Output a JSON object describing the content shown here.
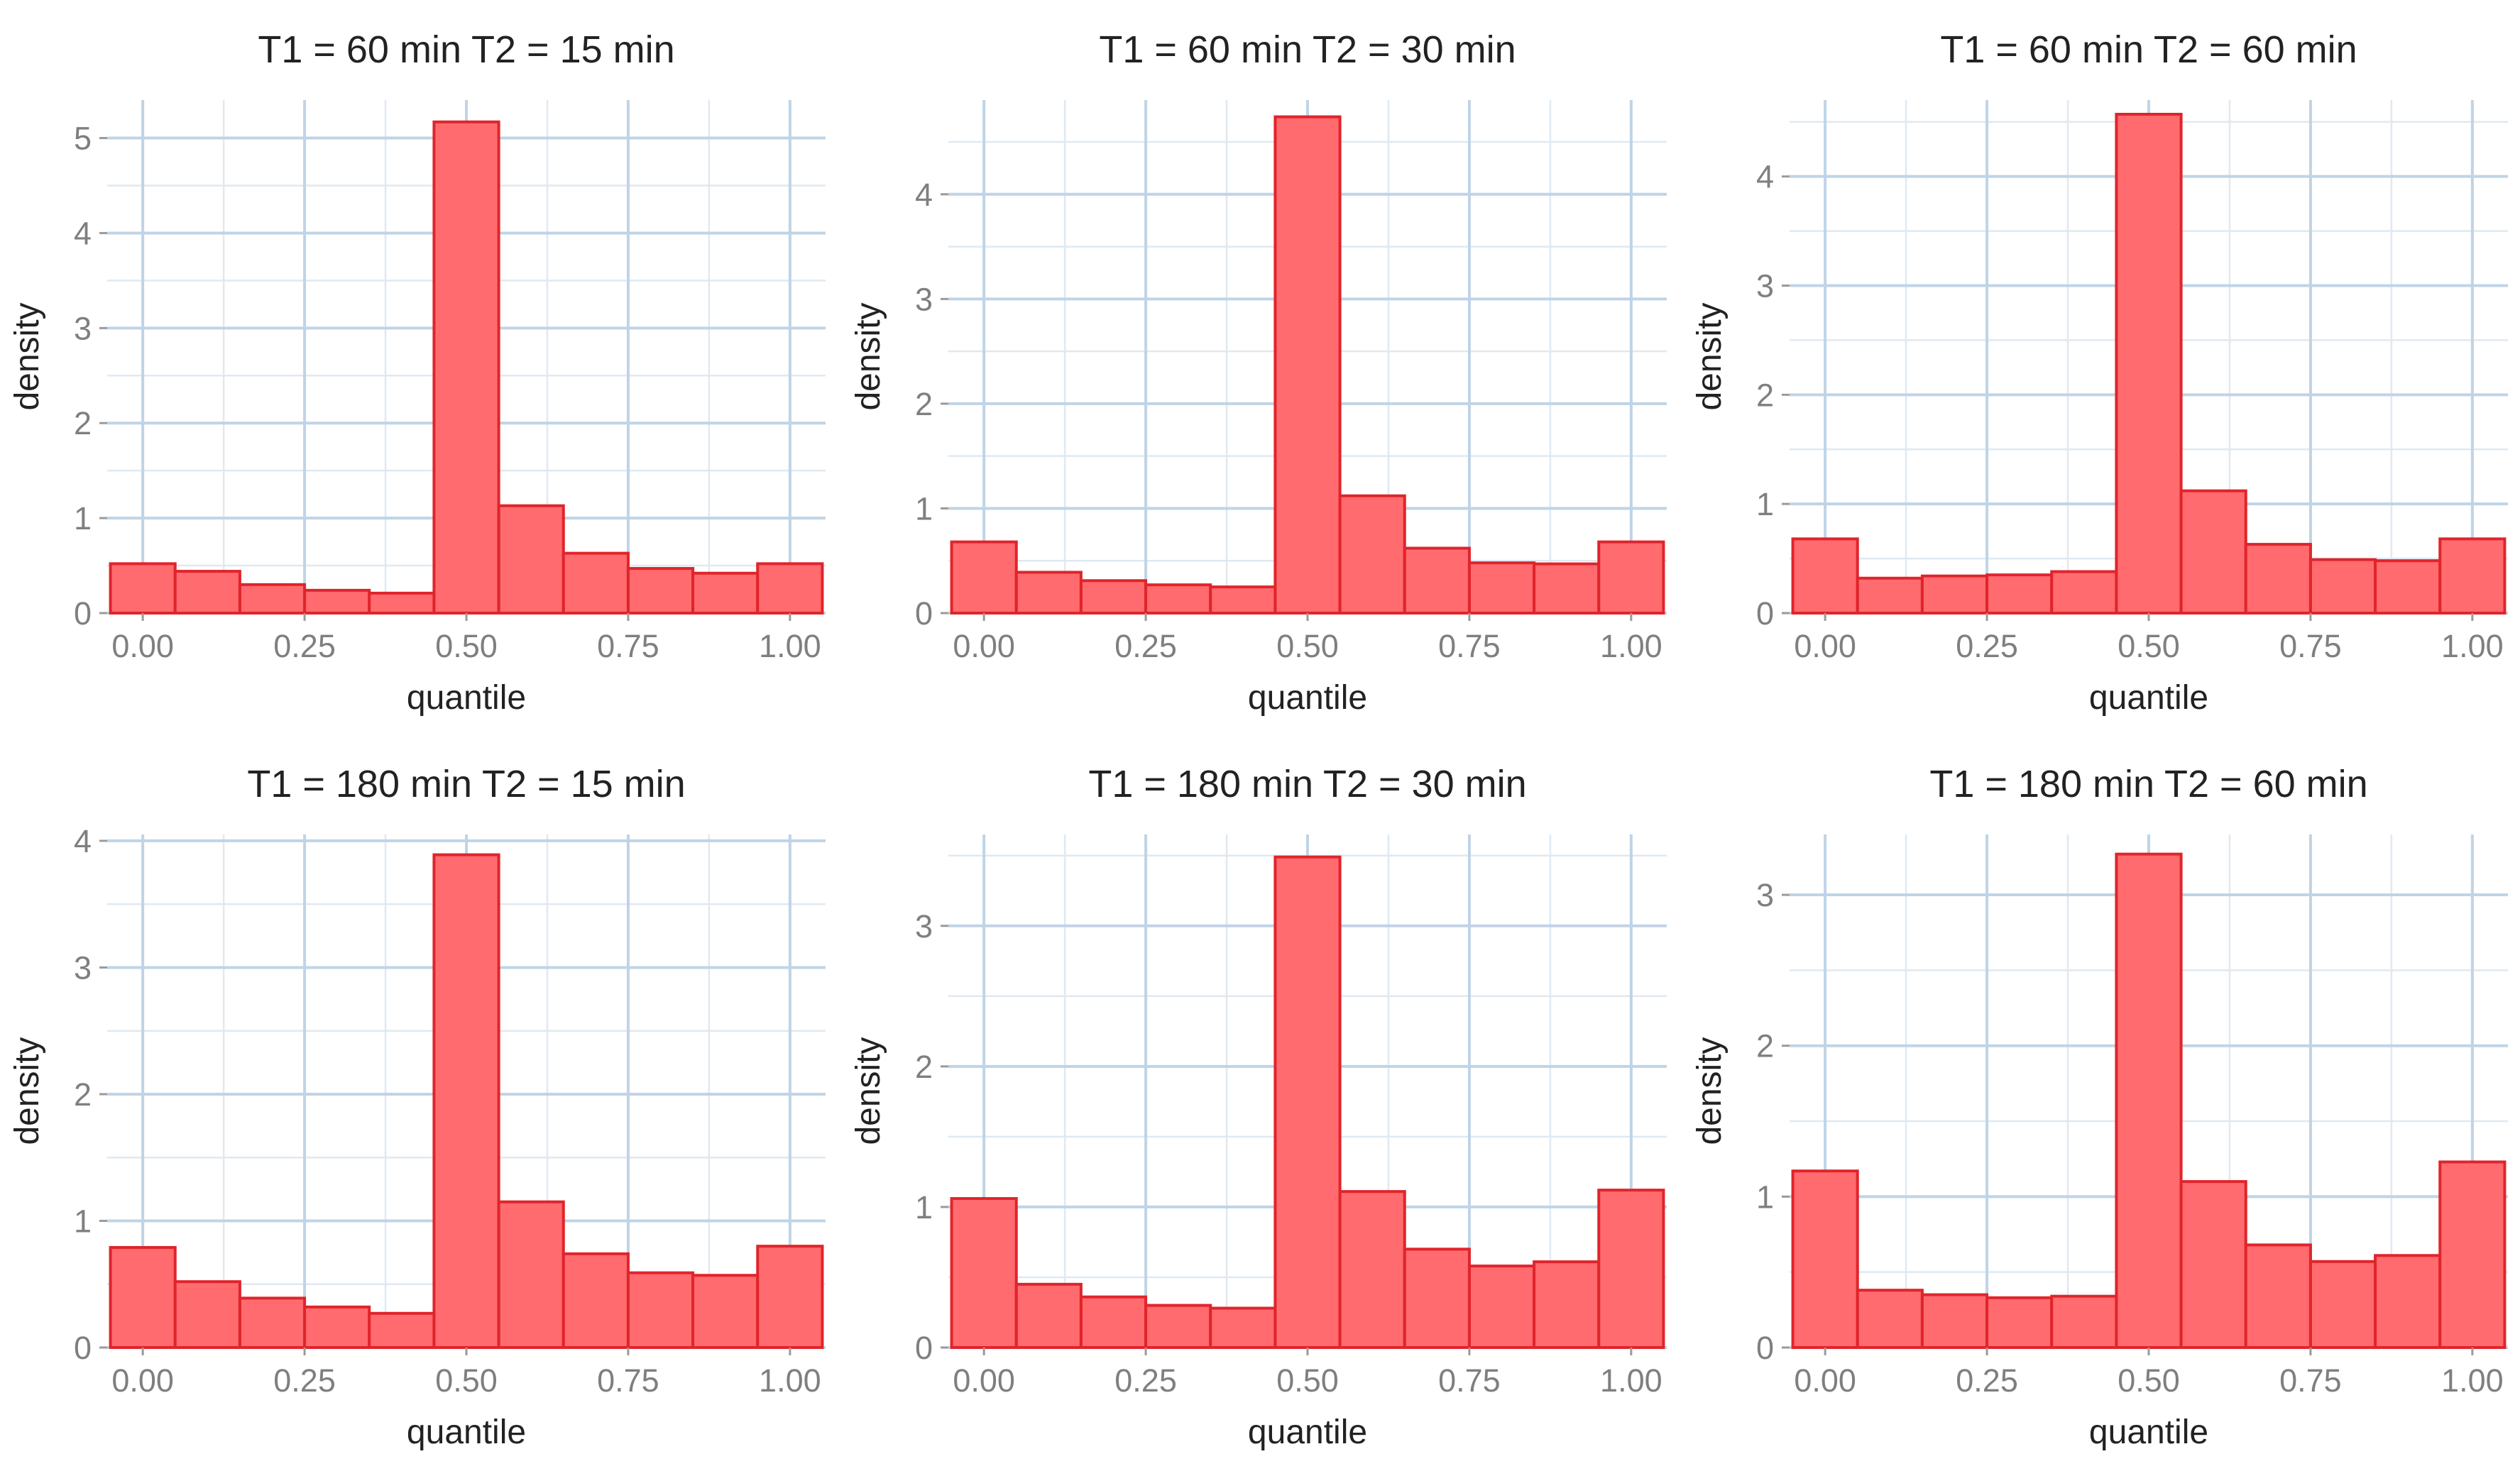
{
  "chart_data": [
    {
      "type": "bar",
      "title": "T1 = 60 min   T2 = 15 min",
      "xlabel": "quantile",
      "ylabel": "density",
      "x": [
        0.0,
        0.1,
        0.2,
        0.3,
        0.4,
        0.5,
        0.6,
        0.7,
        0.8,
        0.9,
        1.0
      ],
      "values": [
        0.52,
        0.44,
        0.3,
        0.24,
        0.21,
        5.17,
        1.13,
        0.63,
        0.47,
        0.42,
        0.52
      ],
      "xticks": [
        "0.00",
        "0.25",
        "0.50",
        "0.75",
        "1.00"
      ],
      "yticks": [
        "0",
        "1",
        "2",
        "3",
        "4",
        "5"
      ],
      "xlim": [
        -0.055,
        1.055
      ],
      "ylim": [
        0,
        5.4
      ],
      "grid": true
    },
    {
      "type": "bar",
      "title": "T1 = 60 min   T2 = 30 min",
      "xlabel": "quantile",
      "ylabel": "density",
      "x": [
        0.0,
        0.1,
        0.2,
        0.3,
        0.4,
        0.5,
        0.6,
        0.7,
        0.8,
        0.9,
        1.0
      ],
      "values": [
        0.68,
        0.39,
        0.31,
        0.27,
        0.25,
        4.74,
        1.12,
        0.62,
        0.48,
        0.47,
        0.68
      ],
      "xticks": [
        "0.00",
        "0.25",
        "0.50",
        "0.75",
        "1.00"
      ],
      "yticks": [
        "0",
        "1",
        "2",
        "3",
        "4"
      ],
      "xlim": [
        -0.055,
        1.055
      ],
      "ylim": [
        0,
        4.9
      ],
      "grid": true
    },
    {
      "type": "bar",
      "title": "T1 = 60 min   T2 = 60 min",
      "xlabel": "quantile",
      "ylabel": "density",
      "x": [
        0.0,
        0.1,
        0.2,
        0.3,
        0.4,
        0.5,
        0.6,
        0.7,
        0.8,
        0.9,
        1.0
      ],
      "values": [
        0.68,
        0.32,
        0.34,
        0.35,
        0.38,
        4.57,
        1.12,
        0.63,
        0.49,
        0.48,
        0.68
      ],
      "xticks": [
        "0.00",
        "0.25",
        "0.50",
        "0.75",
        "1.00"
      ],
      "yticks": [
        "0",
        "1",
        "2",
        "3",
        "4"
      ],
      "xlim": [
        -0.055,
        1.055
      ],
      "ylim": [
        0,
        4.7
      ],
      "grid": true
    },
    {
      "type": "bar",
      "title": "T1 = 180 min   T2 = 15 min",
      "xlabel": "quantile",
      "ylabel": "density",
      "x": [
        0.0,
        0.1,
        0.2,
        0.3,
        0.4,
        0.5,
        0.6,
        0.7,
        0.8,
        0.9,
        1.0
      ],
      "values": [
        0.79,
        0.52,
        0.39,
        0.32,
        0.27,
        3.89,
        1.15,
        0.74,
        0.59,
        0.57,
        0.8
      ],
      "xticks": [
        "0.00",
        "0.25",
        "0.50",
        "0.75",
        "1.00"
      ],
      "yticks": [
        "0",
        "1",
        "2",
        "3",
        "4"
      ],
      "xlim": [
        -0.055,
        1.055
      ],
      "ylim": [
        0,
        4.05
      ],
      "grid": true
    },
    {
      "type": "bar",
      "title": "T1 = 180 min   T2 = 30 min",
      "xlabel": "quantile",
      "ylabel": "density",
      "x": [
        0.0,
        0.1,
        0.2,
        0.3,
        0.4,
        0.5,
        0.6,
        0.7,
        0.8,
        0.9,
        1.0
      ],
      "values": [
        1.06,
        0.45,
        0.36,
        0.3,
        0.28,
        3.49,
        1.11,
        0.7,
        0.58,
        0.61,
        1.12
      ],
      "xticks": [
        "0.00",
        "0.25",
        "0.50",
        "0.75",
        "1.00"
      ],
      "yticks": [
        "0",
        "1",
        "2",
        "3"
      ],
      "xlim": [
        -0.055,
        1.055
      ],
      "ylim": [
        0,
        3.65
      ],
      "grid": true
    },
    {
      "type": "bar",
      "title": "T1 = 180 min   T2 = 60 min",
      "xlabel": "quantile",
      "ylabel": "density",
      "x": [
        0.0,
        0.1,
        0.2,
        0.3,
        0.4,
        0.5,
        0.6,
        0.7,
        0.8,
        0.9,
        1.0
      ],
      "values": [
        1.17,
        0.38,
        0.35,
        0.33,
        0.34,
        3.27,
        1.1,
        0.68,
        0.57,
        0.61,
        1.23
      ],
      "xticks": [
        "0.00",
        "0.25",
        "0.50",
        "0.75",
        "1.00"
      ],
      "yticks": [
        "0",
        "1",
        "2",
        "3"
      ],
      "xlim": [
        -0.055,
        1.055
      ],
      "ylim": [
        0,
        3.4
      ],
      "grid": true
    }
  ]
}
